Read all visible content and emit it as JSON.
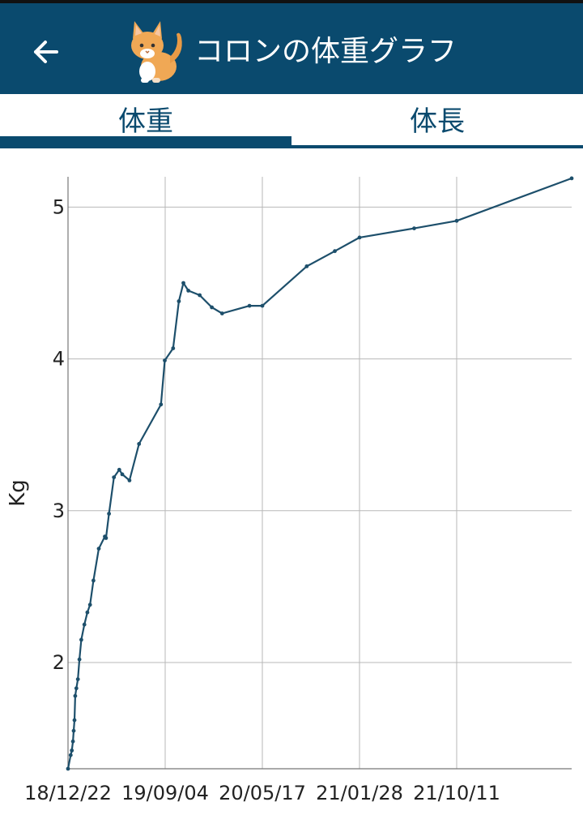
{
  "app_title": "コロンの体重グラフ",
  "icons": {
    "back": "arrow-left-icon",
    "avatar": "cat-icon"
  },
  "colors": {
    "appbar": "#0a4a6e",
    "line": "#1d4f6b",
    "grid": "#b8b8b8"
  },
  "tabs": [
    {
      "label": "体重",
      "selected": true
    },
    {
      "label": "体長",
      "selected": false
    }
  ],
  "chart_data": {
    "type": "line",
    "ylabel": "Kg",
    "xlabel": "",
    "ylim": [
      1.3,
      5.2
    ],
    "yticks": [
      2,
      3,
      4,
      5
    ],
    "ytick_labels": [
      "2",
      "3",
      "4",
      "5"
    ],
    "xlim": [
      "2018-12-22",
      "2022-08-10"
    ],
    "xticks": [
      "2018-12-22",
      "2019-09-04",
      "2020-05-17",
      "2021-01-28",
      "2021-10-11"
    ],
    "xtick_labels": [
      "18/12/22",
      "19/09/04",
      "20/05/17",
      "21/01/28",
      "21/10/11"
    ],
    "grid": true,
    "series": [
      {
        "x": [
          "2018-12-22",
          "2018-12-29",
          "2019-01-01",
          "2019-01-04",
          "2019-01-06",
          "2019-01-08",
          "2019-01-10",
          "2019-01-13",
          "2019-01-17",
          "2019-01-21",
          "2019-01-26",
          "2019-02-03",
          "2019-02-11",
          "2019-02-18",
          "2019-02-27",
          "2019-03-13",
          "2019-03-29",
          "2019-04-01",
          "2019-04-09",
          "2019-04-22",
          "2019-05-06",
          "2019-05-14",
          "2019-06-02",
          "2019-06-27",
          "2019-08-24",
          "2019-09-03",
          "2019-09-25",
          "2019-10-10",
          "2019-10-22",
          "2019-11-04",
          "2019-12-04",
          "2020-01-05",
          "2020-02-01",
          "2020-04-13",
          "2020-05-17",
          "2020-09-11",
          "2020-11-24",
          "2021-01-28",
          "2021-06-21",
          "2021-10-11",
          "2022-08-10"
        ],
        "values": [
          1.3,
          1.39,
          1.42,
          1.48,
          1.55,
          1.62,
          1.78,
          1.83,
          1.89,
          2.02,
          2.15,
          2.25,
          2.33,
          2.38,
          2.54,
          2.75,
          2.83,
          2.82,
          2.98,
          3.22,
          3.27,
          3.24,
          3.2,
          3.44,
          3.7,
          3.99,
          4.07,
          4.38,
          4.5,
          4.45,
          4.42,
          4.34,
          4.3,
          4.35,
          4.35,
          4.61,
          4.71,
          4.8,
          4.86,
          4.91,
          5.19
        ]
      }
    ]
  }
}
